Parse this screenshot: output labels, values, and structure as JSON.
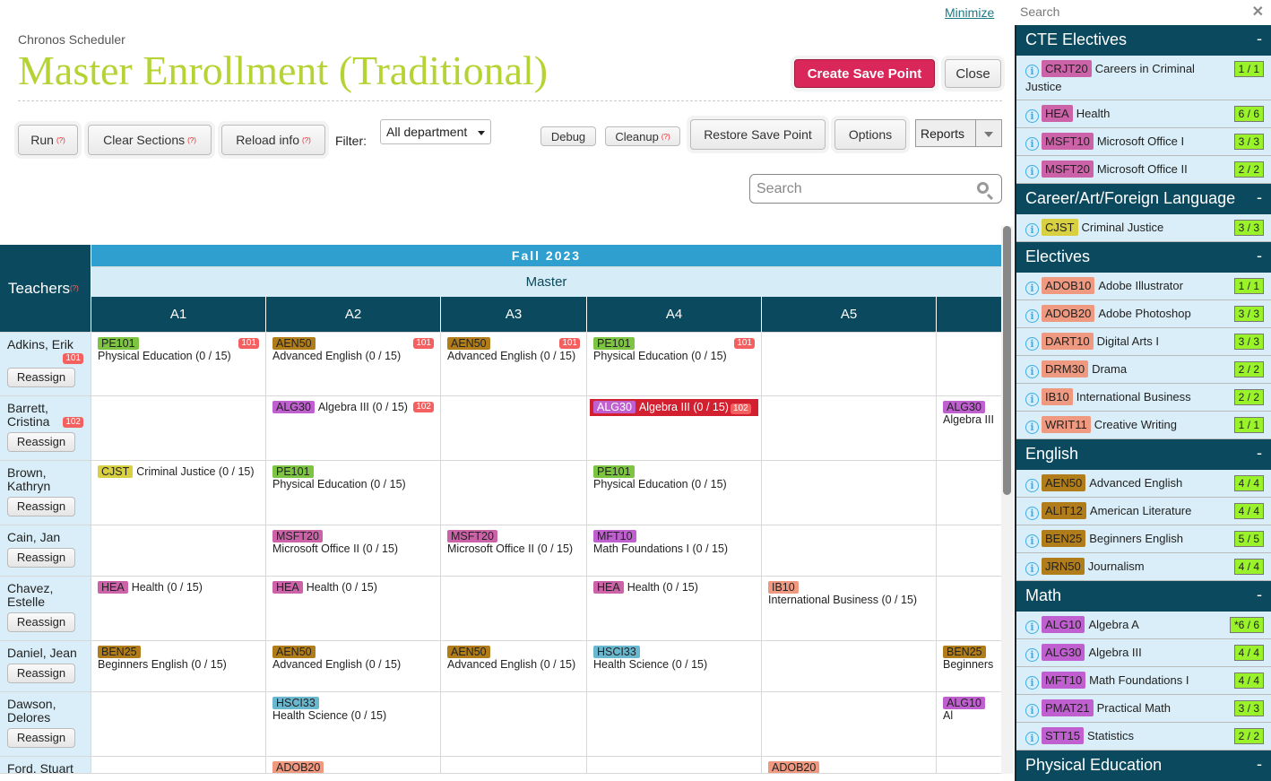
{
  "header": {
    "minimize": "Minimize",
    "app_name": "Chronos Scheduler",
    "title": "Master Enrollment (Traditional)",
    "create_save_point": "Create Save Point",
    "close": "Close"
  },
  "toolbar": {
    "run": "Run",
    "clear_sections": "Clear Sections",
    "reload_info": "Reload info",
    "help_mark": "(?)",
    "filter_label": "Filter:",
    "filter_value": "All department",
    "debug": "Debug",
    "cleanup": "Cleanup",
    "restore_save_point": "Restore Save Point",
    "options": "Options",
    "reports": "Reports",
    "search_placeholder": "Search"
  },
  "colors": {
    "PE": "#7dc442",
    "ENG": "#b07d1a",
    "MATH": "#c05fd0",
    "CTE": "#cc63a8",
    "CJST": "#d8d040",
    "HSCI": "#6ab8d0",
    "ELEC": "#ee9980"
  },
  "grid": {
    "teachers_label": "Teachers",
    "term": "Fall 2023",
    "schedule": "Master",
    "periods": [
      "A1",
      "A2",
      "A3",
      "A4",
      "A5",
      ""
    ],
    "reassign": "Reassign",
    "rows": [
      {
        "teacher": "Adkins, Erik",
        "room": "101",
        "cells": [
          [
            {
              "code": "PE101",
              "name": "Physical Education (0 / 15)",
              "room": "101",
              "color": "PE"
            }
          ],
          [
            {
              "code": "AEN50",
              "name": "Advanced English (0 / 15)",
              "room": "101",
              "color": "ENG"
            }
          ],
          [
            {
              "code": "AEN50",
              "name": "Advanced English (0 / 15)",
              "room": "101",
              "color": "ENG"
            }
          ],
          [
            {
              "code": "PE101",
              "name": "Physical Education (0 / 15)",
              "room": "101",
              "color": "PE"
            }
          ],
          [],
          []
        ]
      },
      {
        "teacher": "Barrett, Cristina",
        "room": "102",
        "cells": [
          [],
          [
            {
              "code": "ALG30",
              "name": "Algebra III (0 / 15)",
              "room": "102",
              "color": "MATH"
            }
          ],
          [],
          [
            {
              "code": "ALG30",
              "name": "Algebra III (0 / 15)",
              "room": "102",
              "color": "MATH",
              "highlighted": true
            }
          ],
          [],
          [
            {
              "code": "ALG30",
              "name": "Algebra III",
              "color": "MATH"
            }
          ]
        ]
      },
      {
        "teacher": "Brown, Kathryn",
        "cells": [
          [
            {
              "code": "CJST",
              "name": "Criminal Justice (0 / 15)",
              "color": "CJST"
            }
          ],
          [
            {
              "code": "PE101",
              "name": "Physical Education (0 / 15)",
              "color": "PE"
            }
          ],
          [],
          [
            {
              "code": "PE101",
              "name": "Physical Education (0 / 15)",
              "color": "PE"
            }
          ],
          [],
          []
        ]
      },
      {
        "teacher": "Cain, Jan",
        "cells": [
          [],
          [
            {
              "code": "MSFT20",
              "name": "Microsoft Office II (0 / 15)",
              "color": "CTE"
            }
          ],
          [
            {
              "code": "MSFT20",
              "name": "Microsoft Office II (0 / 15)",
              "color": "CTE"
            }
          ],
          [
            {
              "code": "MFT10",
              "name": "Math Foundations I (0 / 15)",
              "color": "MATH"
            }
          ],
          [],
          []
        ]
      },
      {
        "teacher": "Chavez, Estelle",
        "cells": [
          [
            {
              "code": "HEA",
              "name": "Health (0 / 15)",
              "color": "CTE"
            }
          ],
          [
            {
              "code": "HEA",
              "name": "Health (0 / 15)",
              "color": "CTE"
            }
          ],
          [],
          [
            {
              "code": "HEA",
              "name": "Health (0 / 15)",
              "color": "CTE"
            }
          ],
          [
            {
              "code": "IB10",
              "name": "International Business (0 / 15)",
              "color": "ELEC"
            }
          ],
          []
        ]
      },
      {
        "teacher": "Daniel, Jean",
        "cells": [
          [
            {
              "code": "BEN25",
              "name": "Beginners English (0 / 15)",
              "color": "ENG"
            }
          ],
          [
            {
              "code": "AEN50",
              "name": "Advanced English (0 / 15)",
              "color": "ENG"
            }
          ],
          [
            {
              "code": "AEN50",
              "name": "Advanced English (0 / 15)",
              "color": "ENG"
            }
          ],
          [
            {
              "code": "HSCI33",
              "name": "Health Science (0 / 15)",
              "color": "HSCI"
            }
          ],
          [],
          [
            {
              "code": "BEN25",
              "name": "Beginners",
              "color": "ENG"
            }
          ]
        ]
      },
      {
        "teacher": "Dawson, Delores",
        "cells": [
          [],
          [
            {
              "code": "HSCI33",
              "name": "Health Science (0 / 15)",
              "color": "HSCI"
            }
          ],
          [],
          [],
          [],
          [
            {
              "code": "ALG10",
              "name": "Al",
              "color": "MATH"
            }
          ]
        ]
      },
      {
        "teacher": "Ford, Stuart",
        "cells": [
          [],
          [
            {
              "code": "ADOB20",
              "name": "",
              "color": "ELEC"
            }
          ],
          [],
          [],
          [
            {
              "code": "ADOB20",
              "name": "",
              "color": "ELEC"
            }
          ],
          []
        ]
      }
    ]
  },
  "sidebar": {
    "search_placeholder": "Search",
    "collapse": "-",
    "sections": [
      {
        "title": "CTE Electives",
        "color": "CTE",
        "items": [
          {
            "code": "CRJT20",
            "name": "Careers in Criminal Justice",
            "count": "1 / 1"
          },
          {
            "code": "HEA",
            "name": "Health",
            "count": "6 / 6"
          },
          {
            "code": "MSFT10",
            "name": "Microsoft Office I",
            "count": "3 / 3"
          },
          {
            "code": "MSFT20",
            "name": "Microsoft Office II",
            "count": "2 / 2"
          }
        ]
      },
      {
        "title": "Career/Art/Foreign Language",
        "color": "CJST",
        "items": [
          {
            "code": "CJST",
            "name": "Criminal Justice",
            "count": "3 / 3"
          }
        ]
      },
      {
        "title": "Electives",
        "color": "ELEC",
        "items": [
          {
            "code": "ADOB10",
            "name": "Adobe Illustrator",
            "count": "1 / 1"
          },
          {
            "code": "ADOB20",
            "name": "Adobe Photoshop",
            "count": "3 / 3"
          },
          {
            "code": "DART10",
            "name": "Digital Arts I",
            "count": "3 / 3"
          },
          {
            "code": "DRM30",
            "name": "Drama",
            "count": "2 / 2"
          },
          {
            "code": "IB10",
            "name": "International Business",
            "count": "2 / 2"
          },
          {
            "code": "WRIT11",
            "name": "Creative Writing",
            "count": "1 / 1"
          }
        ]
      },
      {
        "title": "English",
        "color": "ENG",
        "items": [
          {
            "code": "AEN50",
            "name": "Advanced English",
            "count": "4 / 4"
          },
          {
            "code": "ALIT12",
            "name": "American Literature",
            "count": "4 / 4"
          },
          {
            "code": "BEN25",
            "name": "Beginners English",
            "count": "5 / 5"
          },
          {
            "code": "JRN50",
            "name": "Journalism",
            "count": "4 / 4"
          }
        ]
      },
      {
        "title": "Math",
        "color": "MATH",
        "items": [
          {
            "code": "ALG10",
            "name": "Algebra A",
            "count": "*6 / 6"
          },
          {
            "code": "ALG30",
            "name": "Algebra III",
            "count": "4 / 4"
          },
          {
            "code": "MFT10",
            "name": "Math Foundations I",
            "count": "4 / 4"
          },
          {
            "code": "PMAT21",
            "name": "Practical Math",
            "count": "3 / 3"
          },
          {
            "code": "STT15",
            "name": "Statistics",
            "count": "2 / 2"
          }
        ]
      },
      {
        "title": "Physical Education",
        "color": "PE",
        "items": []
      }
    ]
  }
}
